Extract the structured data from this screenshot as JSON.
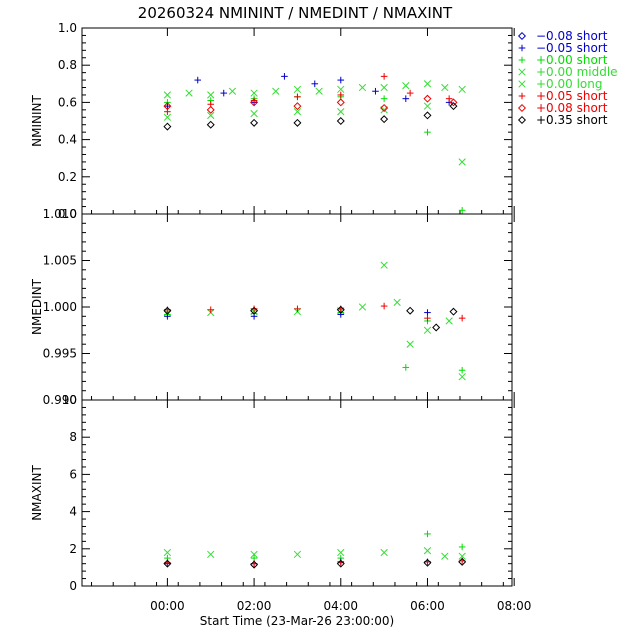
{
  "chart_data": {
    "type": "scatter",
    "title": "20260324 NMININT / NMEDINT / NMAXINT",
    "xlabel": "Start Time (23-Mar-26 23:00:00)",
    "x_unit": "hours",
    "xlim": [
      -0.97,
      8.95
    ],
    "xticks": [
      {
        "value": 1,
        "label": "00:00"
      },
      {
        "value": 3,
        "label": "02:00"
      },
      {
        "value": 5,
        "label": "04:00"
      },
      {
        "value": 7,
        "label": "06:00"
      },
      {
        "value": 9,
        "label": "08:00"
      }
    ],
    "legend_position": "right",
    "legend": [
      {
        "label": "−0.08 short",
        "color": "#0000cc",
        "marker": "diamond"
      },
      {
        "label": "−0.05 short",
        "color": "#0000cc",
        "marker": "plus"
      },
      {
        "label": "+0.00 short",
        "color": "#00dd00",
        "marker": "plus"
      },
      {
        "label": "+0.00 middle",
        "color": "#33dd33",
        "marker": "cross"
      },
      {
        "label": "+0.00 long",
        "color": "#33dd33",
        "marker": "cross"
      },
      {
        "label": "+0.05 short",
        "color": "#ee0000",
        "marker": "plus"
      },
      {
        "label": "+0.08 short",
        "color": "#ee0000",
        "marker": "diamond"
      },
      {
        "label": "+0.35 short",
        "color": "#000000",
        "marker": "diamond"
      }
    ],
    "panels": [
      {
        "ylabel": "NMININT",
        "ylim": [
          0.0,
          1.0
        ],
        "yticks": [
          "0.0",
          "0.2",
          "0.4",
          "0.6",
          "0.8",
          "1.0"
        ],
        "series": [
          {
            "legend_index": 4,
            "x": [
              1.0,
              1.5,
              2.0,
              2.5,
              3.0,
              3.5,
              4.0,
              4.5,
              5.0,
              5.5,
              6.0,
              6.5,
              7.0,
              7.4,
              7.8
            ],
            "y": [
              0.64,
              0.65,
              0.64,
              0.66,
              0.65,
              0.66,
              0.67,
              0.66,
              0.67,
              0.68,
              0.68,
              0.69,
              0.7,
              0.68,
              0.67
            ]
          },
          {
            "legend_index": 3,
            "x": [
              1.0,
              2.0,
              3.0,
              4.0,
              5.0,
              6.0,
              7.0,
              7.8
            ],
            "y": [
              0.52,
              0.53,
              0.54,
              0.55,
              0.55,
              0.56,
              0.58,
              0.28
            ]
          },
          {
            "legend_index": 2,
            "x": [
              1.0,
              2.0,
              3.0,
              4.0,
              5.0,
              6.0,
              7.0,
              7.8
            ],
            "y": [
              0.6,
              0.61,
              0.62,
              0.63,
              0.63,
              0.62,
              0.44,
              0.02
            ]
          },
          {
            "legend_index": 1,
            "x": [
              1.0,
              1.7,
              2.3,
              3.0,
              3.7,
              4.4,
              5.0,
              5.8,
              6.5,
              7.5
            ],
            "y": [
              0.58,
              0.72,
              0.65,
              0.6,
              0.74,
              0.7,
              0.72,
              0.66,
              0.62,
              0.6
            ]
          },
          {
            "legend_index": 5,
            "x": [
              1.0,
              2.0,
              3.0,
              4.0,
              5.0,
              6.0,
              6.6,
              7.5
            ],
            "y": [
              0.55,
              0.59,
              0.61,
              0.63,
              0.64,
              0.74,
              0.65,
              0.62
            ]
          },
          {
            "legend_index": 6,
            "x": [
              1.0,
              2.0,
              3.0,
              4.0,
              5.0,
              6.0,
              7.0,
              7.6
            ],
            "y": [
              0.58,
              0.56,
              0.6,
              0.58,
              0.6,
              0.57,
              0.62,
              0.6
            ]
          },
          {
            "legend_index": 7,
            "x": [
              1.0,
              2.0,
              3.0,
              4.0,
              5.0,
              6.0,
              7.0,
              7.6
            ],
            "y": [
              0.47,
              0.48,
              0.49,
              0.49,
              0.5,
              0.51,
              0.53,
              0.58
            ]
          }
        ]
      },
      {
        "ylabel": "NMEDINT",
        "ylim": [
          0.99,
          1.01
        ],
        "yticks": [
          "0.990",
          "0.995",
          "1.000",
          "1.005",
          "1.010"
        ],
        "series": [
          {
            "legend_index": 4,
            "x": [
              1.0,
              2.0,
              3.0,
              4.0,
              5.0,
              5.5,
              6.0,
              6.3,
              6.6,
              7.0,
              7.5,
              7.8
            ],
            "y": [
              0.9994,
              0.9994,
              0.9995,
              0.9995,
              0.9996,
              1.0,
              1.0045,
              1.0005,
              0.996,
              0.9975,
              0.9985,
              0.9925
            ]
          },
          {
            "legend_index": 2,
            "x": [
              1.0,
              3.0,
              5.0,
              6.5,
              7.0,
              7.8
            ],
            "y": [
              0.9992,
              0.9993,
              0.9994,
              0.9935,
              0.9985,
              0.9932
            ]
          },
          {
            "legend_index": 1,
            "x": [
              1.0,
              3.0,
              5.0,
              7.0
            ],
            "y": [
              0.999,
              0.999,
              0.9992,
              0.9994
            ]
          },
          {
            "legend_index": 5,
            "x": [
              1.0,
              2.0,
              3.0,
              4.0,
              5.0,
              6.0,
              7.0,
              7.8
            ],
            "y": [
              0.9997,
              0.9997,
              0.9998,
              0.9998,
              0.9998,
              1.0001,
              0.9988,
              0.9988
            ]
          },
          {
            "legend_index": 7,
            "x": [
              1.0,
              3.0,
              5.0,
              6.6,
              7.2,
              7.6
            ],
            "y": [
              0.9996,
              0.9996,
              0.9997,
              0.9996,
              0.9978,
              0.9995
            ]
          }
        ]
      },
      {
        "ylabel": "NMAXINT",
        "ylim": [
          0,
          10
        ],
        "yticks": [
          "0",
          "2",
          "4",
          "6",
          "8",
          "10"
        ],
        "series": [
          {
            "legend_index": 4,
            "x": [
              1.0,
              2.0,
              3.0,
              4.0,
              5.0,
              6.0,
              7.0,
              7.4,
              7.8
            ],
            "y": [
              1.8,
              1.7,
              1.7,
              1.7,
              1.8,
              1.8,
              1.9,
              1.6,
              1.6
            ]
          },
          {
            "legend_index": 2,
            "x": [
              1.0,
              3.0,
              5.0,
              7.0,
              7.8
            ],
            "y": [
              1.5,
              1.5,
              1.5,
              2.8,
              2.1
            ]
          },
          {
            "legend_index": 1,
            "x": [
              1.0,
              3.0,
              5.0,
              7.0
            ],
            "y": [
              1.2,
              1.2,
              1.3,
              1.3
            ]
          },
          {
            "legend_index": 5,
            "x": [
              1.0,
              3.0,
              5.0,
              7.0,
              7.8
            ],
            "y": [
              1.25,
              1.2,
              1.25,
              1.3,
              1.35
            ]
          },
          {
            "legend_index": 7,
            "x": [
              1.0,
              3.0,
              5.0,
              7.0,
              7.8
            ],
            "y": [
              1.2,
              1.15,
              1.2,
              1.25,
              1.3
            ]
          }
        ]
      }
    ]
  }
}
